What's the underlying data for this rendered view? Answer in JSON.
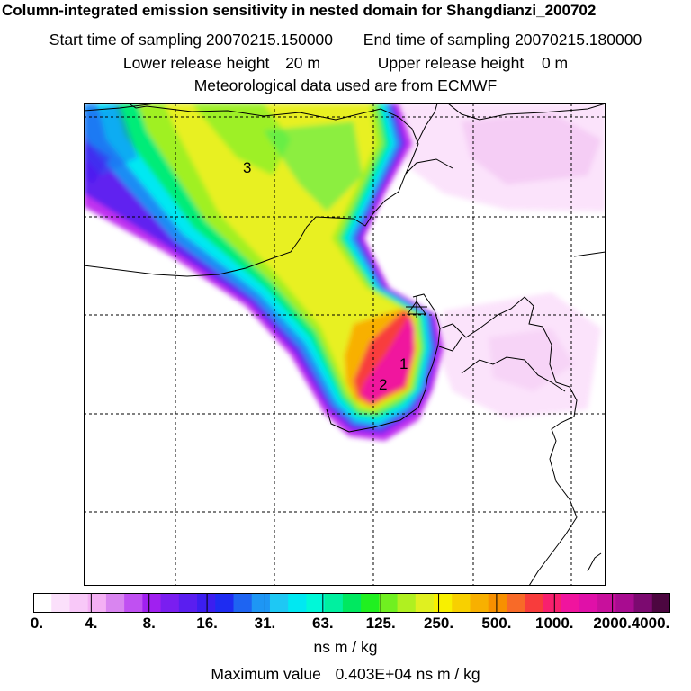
{
  "header": {
    "title": "Column-integrated emission sensitivity in nested domain for Shangdianzi_200702",
    "start_label": "Start time of sampling",
    "start_value": "20070215.150000",
    "end_label": "End time of sampling",
    "end_value": "20070215.180000",
    "lower_label": "Lower release height",
    "lower_value": "20 m",
    "upper_label": "Upper release height",
    "upper_value": "0 m",
    "met_line": "Meteorological data used are from ECMWF"
  },
  "map": {
    "labels": [
      "3",
      "1",
      "2"
    ],
    "receptor_marker": "triangle"
  },
  "legend": {
    "colors": [
      "#ffffff",
      "#fbe0fb",
      "#f8c8f8",
      "#f4b0f4",
      "#d985f0",
      "#c050f2",
      "#a020f0",
      "#7a1ef0",
      "#5a1ef0",
      "#3c1ef0",
      "#1e2cf2",
      "#1e64f2",
      "#1e96f4",
      "#1ec8f4",
      "#00e8f2",
      "#00f8d8",
      "#00f0a0",
      "#00e860",
      "#20f020",
      "#70f020",
      "#b0f020",
      "#e0f020",
      "#f8f000",
      "#f8d000",
      "#f8b000",
      "#f89000",
      "#f86a28",
      "#f83c3c",
      "#f8206e",
      "#f0149e",
      "#e010a8",
      "#c8109c",
      "#a80c90",
      "#7c0a70",
      "#4c0640"
    ],
    "tick_labels": [
      "0.",
      "4.",
      "8.",
      "16.",
      "31.",
      "63.",
      "125.",
      "250.",
      "500.",
      "1000.",
      "2000.",
      "4000."
    ],
    "unit": "ns m / kg",
    "max_label": "Maximum value",
    "max_value": "0.403E+04 ns m / kg"
  }
}
